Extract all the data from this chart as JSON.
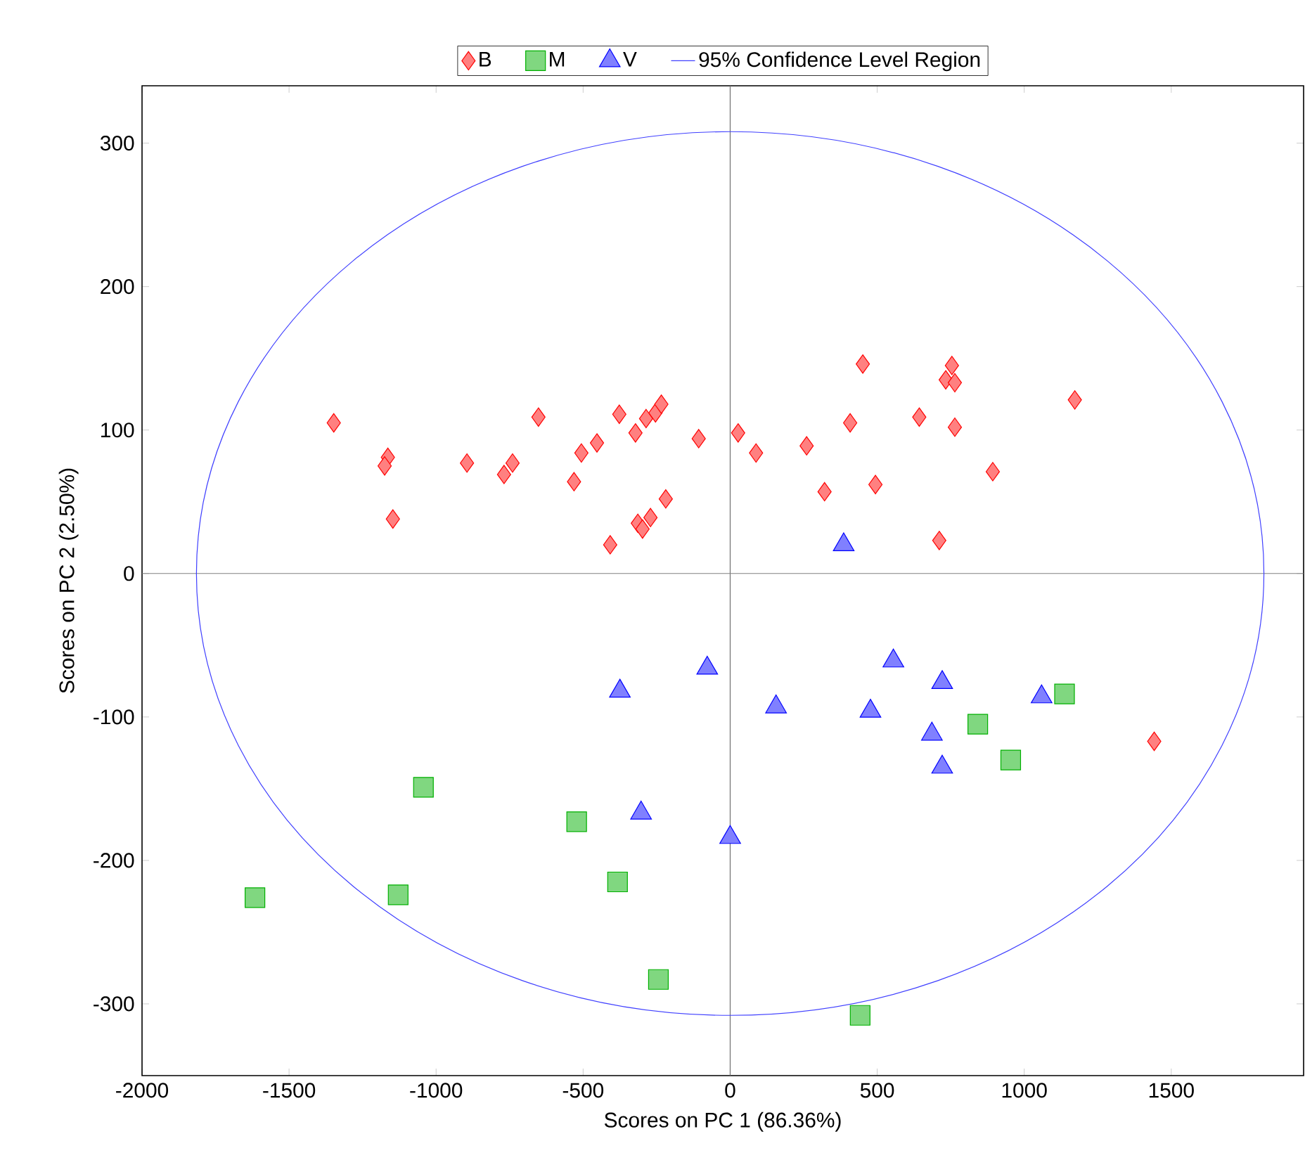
{
  "chart_data": {
    "type": "scatter",
    "xlabel": "Scores on PC 1 (86.36%)",
    "ylabel": "Scores on PC 2 (2.50%)",
    "xlim": [
      -2000,
      1950
    ],
    "ylim": [
      -350,
      340
    ],
    "xticks": [
      -2000,
      -1500,
      -1000,
      -500,
      0,
      500,
      1000,
      1500
    ],
    "yticks": [
      -300,
      -200,
      -100,
      0,
      100,
      200,
      300
    ],
    "legend": "top",
    "ref_lines": [
      {
        "axis": "x",
        "value": 0,
        "color": "#707070"
      },
      {
        "axis": "y",
        "value": 0,
        "color": "#808080"
      }
    ],
    "series": [
      {
        "name": "B",
        "color": "#ff0000",
        "marker": "diamond",
        "x": [
          -1348,
          -1164,
          -1175,
          -1147,
          -895,
          -740,
          -769,
          -652,
          -531,
          -506,
          -453,
          -408,
          -377,
          -322,
          -314,
          -298,
          -271,
          -286,
          -254,
          -234,
          -219,
          -107,
          27,
          88,
          260,
          408,
          451,
          321,
          494,
          643,
          754,
          733,
          764,
          764,
          893,
          711,
          1172,
          1442
        ],
        "values": [
          105,
          81,
          75,
          38,
          77,
          77,
          69,
          109,
          64,
          84,
          91,
          20,
          111,
          98,
          35,
          31,
          39,
          108,
          112,
          118,
          52,
          94,
          98,
          84,
          89,
          105,
          146,
          57,
          62,
          109,
          145,
          135,
          133,
          102,
          71,
          23,
          121,
          -117
        ]
      },
      {
        "name": "M",
        "color": "#00b000",
        "marker": "square",
        "x": [
          -1616,
          -1129,
          -1043,
          -522,
          -383,
          -244,
          442,
          842,
          954,
          1137
        ],
        "values": [
          -226,
          -224,
          -149,
          -173,
          -215,
          -283,
          -308,
          -105,
          -130,
          -84
        ]
      },
      {
        "name": "V",
        "color": "#0000ff",
        "marker": "triangle",
        "x": [
          -375,
          -303,
          -78,
          0,
          156,
          386,
          477,
          555,
          686,
          721,
          721,
          1059
        ],
        "values": [
          -82,
          -167,
          -66,
          -184,
          -93,
          20,
          -96,
          -61,
          -112,
          -76,
          -135,
          -86
        ]
      },
      {
        "name": "95% Confidence Level Region",
        "type": "other",
        "color": "#4040ff"
      }
    ]
  }
}
